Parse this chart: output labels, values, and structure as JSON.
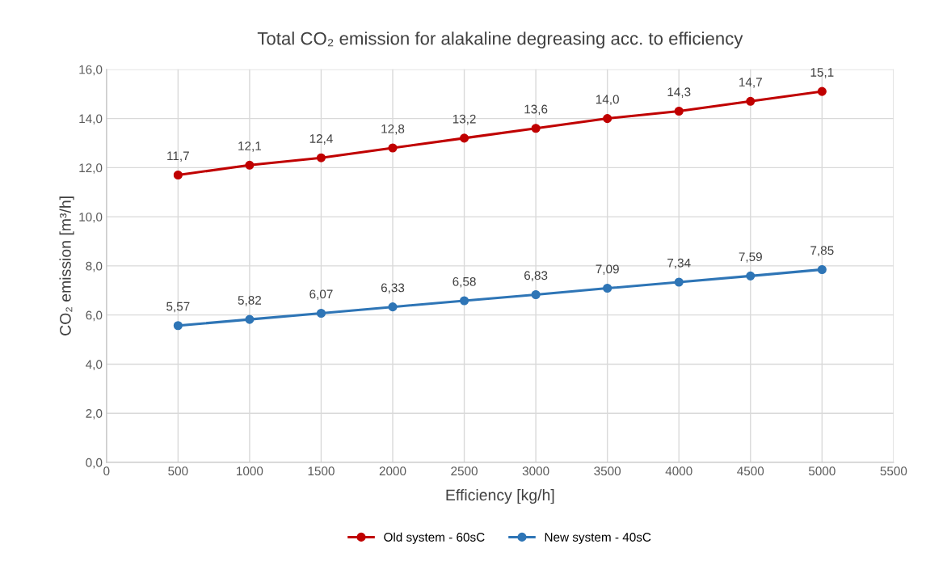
{
  "chart_data": {
    "type": "line",
    "title": "Total CO₂ emission for alakaline degreasing acc. to efficiency",
    "xlabel": "Efficiency [kg/h]",
    "ylabel": "CO₂ emission [m³/h]",
    "x": [
      500,
      1000,
      1500,
      2000,
      2500,
      3000,
      3500,
      4000,
      4500,
      5000
    ],
    "series": [
      {
        "name": "Old system - 60sC",
        "color": "#c00000",
        "values": [
          11.7,
          12.1,
          12.4,
          12.8,
          13.2,
          13.6,
          14.0,
          14.3,
          14.7,
          15.1
        ],
        "value_labels": [
          "11,7",
          "12,1",
          "12,4",
          "12,8",
          "13,2",
          "13,6",
          "14,0",
          "14,3",
          "14,7",
          "15,1"
        ]
      },
      {
        "name": "New system - 40sC",
        "color": "#2e75b6",
        "values": [
          5.57,
          5.82,
          6.07,
          6.33,
          6.58,
          6.83,
          7.09,
          7.34,
          7.59,
          7.85
        ],
        "value_labels": [
          "5,57",
          "5,82",
          "6,07",
          "6,33",
          "6,58",
          "6,83",
          "7,09",
          "7,34",
          "7,59",
          "7,85"
        ]
      }
    ],
    "xlim": [
      0,
      5500
    ],
    "xticks": [
      0,
      500,
      1000,
      1500,
      2000,
      2500,
      3000,
      3500,
      4000,
      4500,
      5000,
      5500
    ],
    "ylim": [
      0,
      16
    ],
    "yticks": [
      {
        "value": 0,
        "label": "0,0"
      },
      {
        "value": 2,
        "label": "2,0"
      },
      {
        "value": 4,
        "label": "4,0"
      },
      {
        "value": 6,
        "label": "6,0"
      },
      {
        "value": 8,
        "label": "8,0"
      },
      {
        "value": 10,
        "label": "10,0"
      },
      {
        "value": 12,
        "label": "12,0"
      },
      {
        "value": 14,
        "label": "14,0"
      },
      {
        "value": 16,
        "label": "16,0"
      }
    ],
    "grid": true,
    "legend": "bottom",
    "marker": "circle",
    "line_style": "solid"
  }
}
